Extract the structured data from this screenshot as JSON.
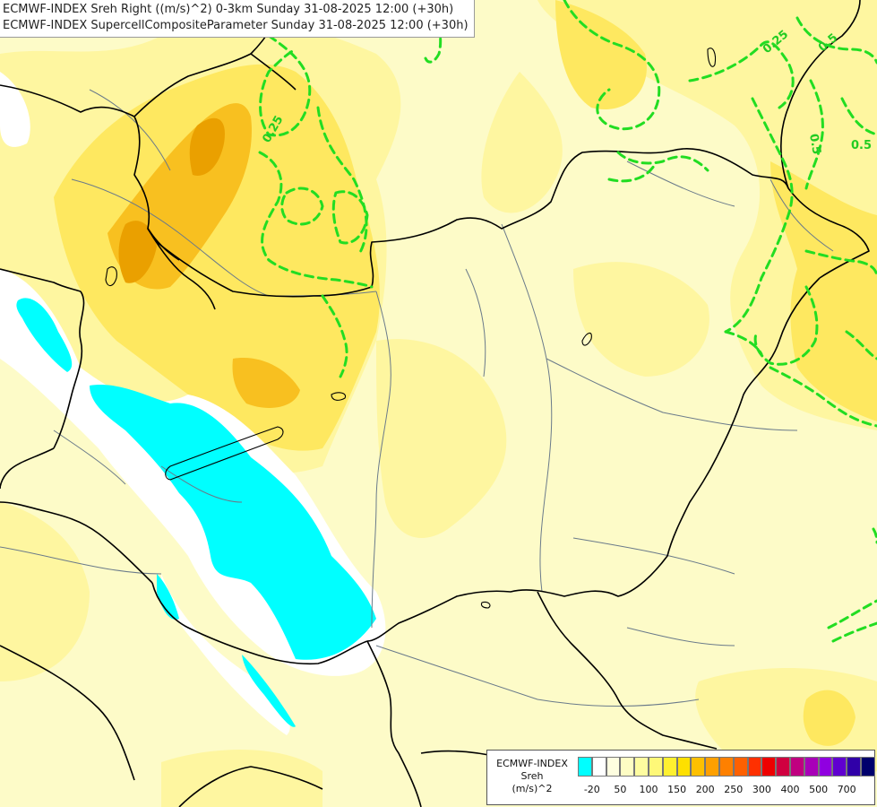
{
  "titles": {
    "line1": "ECMWF-INDEX Sreh Right ((m/s)^2) 0-3km Sunday 31-08-2025 12:00 (+30h)",
    "line2": "ECMWF-INDEX SupercellCompositeParameter Sunday 31-08-2025 12:00 (+30h)"
  },
  "contour_labels": {
    "a": "0.25",
    "b": "0.5",
    "c": "0.25",
    "d": "0.5",
    "e": "0.5"
  },
  "legend": {
    "title_line1": "ECMWF-INDEX",
    "title_line2": "Sreh",
    "title_line3": "(m/s)^2",
    "swatch_colors": [
      "#00ffff",
      "#ffffff",
      "#fefee0",
      "#fefdc4",
      "#fefca0",
      "#fef878",
      "#fef030",
      "#fee000",
      "#fec000",
      "#fea000",
      "#fe8000",
      "#fe6000",
      "#fe3000",
      "#ee0000",
      "#d00040",
      "#c00080",
      "#a800b8",
      "#9000e0",
      "#6000d0",
      "#3000a8",
      "#00006c"
    ],
    "tick_labels": [
      "-20",
      "50",
      "100",
      "150",
      "200",
      "250",
      "300",
      "400",
      "500",
      "700"
    ]
  },
  "colors": {
    "cyan_negative": "#00ffff",
    "pale_yellow": "#fdfbc8",
    "light_yellow": "#fef6a0",
    "yellow": "#fee860",
    "orange": "#f8b800",
    "dark_orange": "#e89000",
    "contour_green": "#22dd22",
    "border_black": "#000000",
    "river_gray": "#6a7a8a"
  }
}
